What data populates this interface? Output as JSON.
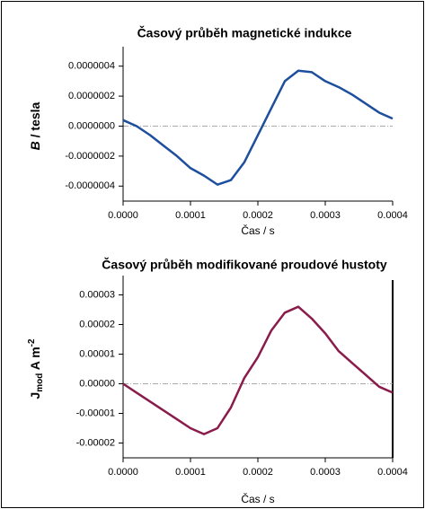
{
  "chart_data": [
    {
      "type": "line",
      "title": "Časový průběh magnetické indukce",
      "ylabel": [
        "B",
        " / tesla"
      ],
      "xlabel": "Čas / s",
      "x": [
        0,
        2e-05,
        4e-05,
        6e-05,
        8e-05,
        0.0001,
        0.00012,
        0.00014,
        0.00016,
        0.00018,
        0.0002,
        0.00022,
        0.00024,
        0.00026,
        0.00028,
        0.0003,
        0.00032,
        0.00034,
        0.00036,
        0.00038,
        0.0004
      ],
      "series": [
        {
          "color": "#1d4f9e",
          "values": [
            4e-08,
            0,
            -6e-08,
            -1.3e-07,
            -2e-07,
            -2.8e-07,
            -3.3e-07,
            -3.9e-07,
            -3.6e-07,
            -2.4e-07,
            -6e-08,
            1.2e-07,
            3e-07,
            3.7e-07,
            3.6e-07,
            3e-07,
            2.6e-07,
            2.1e-07,
            1.5e-07,
            9e-08,
            5e-08
          ]
        }
      ],
      "xlim": [
        0,
        0.0004
      ],
      "xticks": [
        {
          "value": 0,
          "label": "0.0000"
        },
        {
          "value": 0.0001,
          "label": "0.0001"
        },
        {
          "value": 0.0002,
          "label": "0.0002"
        },
        {
          "value": 0.0003,
          "label": "0.0003"
        },
        {
          "value": 0.0004,
          "label": "0.0004"
        }
      ],
      "ylim": [
        -5e-07,
        5e-07
      ],
      "yticks": [
        {
          "value": -4e-07,
          "label": "-0.0000004"
        },
        {
          "value": -2e-07,
          "label": "-0.0000002"
        },
        {
          "value": 0,
          "label": "0.0000000"
        },
        {
          "value": 2e-07,
          "label": "0.0000002"
        },
        {
          "value": 4e-07,
          "label": "0.0000004"
        }
      ]
    },
    {
      "type": "line",
      "title": "Časový průběh modifikované proudové hustoty",
      "ylabel": [
        "J",
        "mod",
        " A m",
        "-2"
      ],
      "xlabel": "Čas / s",
      "x": [
        0,
        2e-05,
        4e-05,
        6e-05,
        8e-05,
        0.0001,
        0.00012,
        0.00014,
        0.00016,
        0.00018,
        0.0002,
        0.00022,
        0.00024,
        0.00026,
        0.00028,
        0.0003,
        0.00032,
        0.00034,
        0.00036,
        0.00038,
        0.0004
      ],
      "series": [
        {
          "color": "#8a1c4c",
          "values": [
            0,
            -3e-06,
            -6e-06,
            -9e-06,
            -1.2e-05,
            -1.5e-05,
            -1.7e-05,
            -1.5e-05,
            -8e-06,
            2e-06,
            9e-06,
            1.8e-05,
            2.4e-05,
            2.6e-05,
            2.2e-05,
            1.7e-05,
            1.1e-05,
            7e-06,
            3e-06,
            -1e-06,
            -3e-06
          ]
        }
      ],
      "xlim": [
        0,
        0.0004
      ],
      "xticks": [
        {
          "value": 0,
          "label": "0.0000"
        },
        {
          "value": 0.0001,
          "label": "0.0001"
        },
        {
          "value": 0.0002,
          "label": "0.0002"
        },
        {
          "value": 0.0003,
          "label": "0.0003"
        },
        {
          "value": 0.0004,
          "label": "0.0004"
        }
      ],
      "ylim": [
        -2.5e-05,
        3.5e-05
      ],
      "yticks": [
        {
          "value": -2e-05,
          "label": "-0.00002"
        },
        {
          "value": -1e-05,
          "label": "-0.00001"
        },
        {
          "value": 0,
          "label": "0.00000"
        },
        {
          "value": 1e-05,
          "label": "0.00001"
        },
        {
          "value": 2e-05,
          "label": "0.00002"
        },
        {
          "value": 3e-05,
          "label": "0.00003"
        }
      ]
    }
  ]
}
